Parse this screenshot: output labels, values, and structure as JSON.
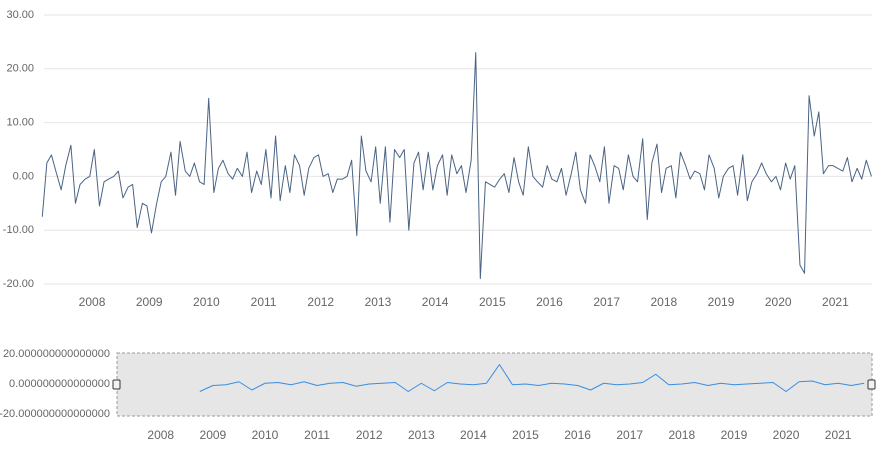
{
  "chart_data": [
    {
      "type": "line",
      "color": "#4a6384",
      "xlim": [
        2007.16,
        2021.64
      ],
      "xticks": [
        2008,
        2009,
        2010,
        2011,
        2012,
        2013,
        2014,
        2015,
        2016,
        2017,
        2018,
        2019,
        2020,
        2021
      ],
      "ylim": [
        -20,
        30
      ],
      "yticks": [
        {
          "value": -20,
          "label": "-20.00"
        },
        {
          "value": -10,
          "label": "-10.00"
        },
        {
          "value": 0,
          "label": "0.00"
        },
        {
          "value": 10,
          "label": "10.00"
        },
        {
          "value": 20,
          "label": "20.00"
        },
        {
          "value": 30,
          "label": "30.00"
        }
      ],
      "grid": true,
      "x": [
        2007.13,
        2007.21,
        2007.29,
        2007.38,
        2007.46,
        2007.54,
        2007.63,
        2007.71,
        2007.79,
        2007.88,
        2007.96,
        2008.04,
        2008.13,
        2008.21,
        2008.29,
        2008.38,
        2008.46,
        2008.54,
        2008.63,
        2008.71,
        2008.79,
        2008.88,
        2008.96,
        2009.04,
        2009.13,
        2009.21,
        2009.29,
        2009.38,
        2009.46,
        2009.54,
        2009.63,
        2009.71,
        2009.79,
        2009.88,
        2009.96,
        2010.04,
        2010.13,
        2010.21,
        2010.29,
        2010.38,
        2010.46,
        2010.54,
        2010.63,
        2010.71,
        2010.79,
        2010.88,
        2010.96,
        2011.04,
        2011.13,
        2011.21,
        2011.29,
        2011.38,
        2011.46,
        2011.54,
        2011.63,
        2011.71,
        2011.79,
        2011.88,
        2011.96,
        2012.04,
        2012.13,
        2012.21,
        2012.29,
        2012.38,
        2012.46,
        2012.54,
        2012.63,
        2012.71,
        2012.79,
        2012.88,
        2012.96,
        2013.04,
        2013.13,
        2013.21,
        2013.29,
        2013.38,
        2013.46,
        2013.54,
        2013.63,
        2013.71,
        2013.79,
        2013.88,
        2013.96,
        2014.04,
        2014.13,
        2014.21,
        2014.29,
        2014.38,
        2014.46,
        2014.54,
        2014.63,
        2014.71,
        2014.79,
        2014.88,
        2014.96,
        2015.04,
        2015.13,
        2015.21,
        2015.29,
        2015.38,
        2015.46,
        2015.54,
        2015.63,
        2015.71,
        2015.79,
        2015.88,
        2015.96,
        2016.04,
        2016.13,
        2016.21,
        2016.29,
        2016.38,
        2016.46,
        2016.54,
        2016.63,
        2016.71,
        2016.79,
        2016.88,
        2016.96,
        2017.04,
        2017.13,
        2017.21,
        2017.29,
        2017.38,
        2017.46,
        2017.54,
        2017.63,
        2017.71,
        2017.79,
        2017.88,
        2017.96,
        2018.04,
        2018.13,
        2018.21,
        2018.29,
        2018.38,
        2018.46,
        2018.54,
        2018.63,
        2018.71,
        2018.79,
        2018.88,
        2018.96,
        2019.04,
        2019.13,
        2019.21,
        2019.29,
        2019.38,
        2019.46,
        2019.54,
        2019.63,
        2019.71,
        2019.79,
        2019.88,
        2019.96,
        2020.04,
        2020.13,
        2020.21,
        2020.29,
        2020.38,
        2020.46,
        2020.54,
        2020.63,
        2020.71,
        2020.79,
        2020.88,
        2020.96,
        2021.04,
        2021.13,
        2021.21,
        2021.29,
        2021.38,
        2021.46,
        2021.54,
        2021.63
      ],
      "values": [
        -7.5,
        2.5,
        4,
        0.5,
        -2.5,
        2,
        5.8,
        -5,
        -1.5,
        -0.5,
        0,
        5,
        -5.5,
        -1,
        -0.5,
        0,
        1,
        -4,
        -2,
        -1.5,
        -9.5,
        -5,
        -5.5,
        -10.5,
        -5,
        -1,
        0,
        4.5,
        -3.5,
        6.5,
        1,
        0,
        2.5,
        -1,
        -1.5,
        14.5,
        -3,
        1.5,
        3,
        0.5,
        -0.5,
        1.5,
        0,
        4.5,
        -3,
        1,
        -1.5,
        5,
        -4,
        7.5,
        -4.5,
        2,
        -3,
        4,
        2,
        -3.5,
        1.5,
        3.5,
        4,
        0,
        0.5,
        -3,
        -0.5,
        -0.5,
        0,
        3,
        -11,
        7.5,
        1,
        -1,
        5.5,
        -5,
        5.5,
        -8.5,
        5,
        3.5,
        5,
        -10,
        2.5,
        4.5,
        -2.5,
        4.5,
        -2.5,
        2,
        4,
        -3.5,
        4,
        0.5,
        2,
        -3,
        3,
        23,
        -19,
        -1,
        -1.5,
        -2,
        -0.5,
        0.5,
        -3,
        3.5,
        -1,
        -3.5,
        5.5,
        0,
        -1,
        -2,
        2,
        -0.5,
        -1,
        1.5,
        -3.5,
        0.5,
        4.5,
        -2.5,
        -5,
        4,
        2,
        -1,
        5.5,
        -5,
        2,
        1.5,
        -2.5,
        4,
        0,
        -1,
        7,
        -8,
        2.5,
        6,
        -3,
        1.5,
        2,
        -4,
        4.5,
        2,
        -0.5,
        1,
        0.5,
        -2.5,
        4,
        1.5,
        -4,
        0,
        1.5,
        2,
        -3.5,
        4,
        -4.5,
        -1,
        0.5,
        2.5,
        0.5,
        -1,
        0,
        -2.5,
        2.5,
        -0.5,
        2,
        -16.5,
        -18,
        15,
        7.5,
        12,
        0.5,
        2,
        2,
        1.5,
        1,
        3.5,
        -1,
        1.5,
        -0.5,
        3,
        0
      ]
    },
    {
      "type": "line",
      "color": "#3a8de0",
      "xlim": [
        2007.16,
        2021.65
      ],
      "xticks": [
        2008,
        2009,
        2010,
        2011,
        2012,
        2013,
        2014,
        2015,
        2016,
        2017,
        2018,
        2019,
        2020,
        2021
      ],
      "ylim": [
        -20,
        20
      ],
      "yticks": [
        {
          "value": -20,
          "label": "-20.000000000000000"
        },
        {
          "value": 0,
          "label": "0.000000000000000"
        },
        {
          "value": 20,
          "label": "20.000000000000000"
        }
      ],
      "grid": false,
      "x": [
        2008.75,
        2009,
        2009.25,
        2009.5,
        2009.75,
        2010,
        2010.25,
        2010.5,
        2010.75,
        2011,
        2011.25,
        2011.5,
        2011.75,
        2012,
        2012.25,
        2012.5,
        2012.75,
        2013,
        2013.25,
        2013.5,
        2013.75,
        2014,
        2014.25,
        2014.5,
        2014.75,
        2015,
        2015.25,
        2015.5,
        2015.75,
        2016,
        2016.25,
        2016.5,
        2016.75,
        2017,
        2017.25,
        2017.5,
        2017.75,
        2018,
        2018.25,
        2018.5,
        2018.75,
        2019,
        2019.25,
        2019.5,
        2019.75,
        2020,
        2020.25,
        2020.5,
        2020.75,
        2021,
        2021.25,
        2021.5
      ],
      "values": [
        -5,
        -1,
        -0.5,
        1.5,
        -4,
        0.5,
        1,
        -0.5,
        1.5,
        -1,
        0.5,
        1,
        -1.5,
        0,
        0.5,
        1,
        -5,
        0.5,
        -4.5,
        1,
        0,
        -0.5,
        0.5,
        13,
        -0.5,
        0,
        -1,
        0.5,
        0,
        -1,
        -4,
        0.5,
        -0.5,
        0,
        1,
        6.5,
        -0.5,
        0,
        1,
        -1,
        0.5,
        -0.5,
        0,
        0.5,
        1,
        -5,
        1.5,
        2,
        -0.5,
        0.5,
        -1,
        0.5
      ]
    }
  ]
}
